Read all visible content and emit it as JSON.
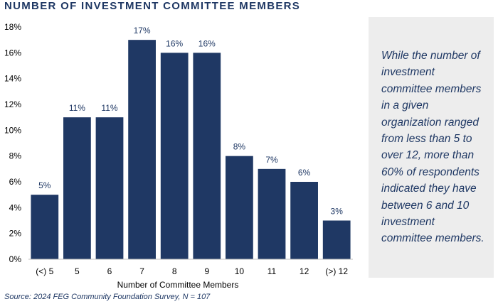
{
  "title": "NUMBER OF INVESTMENT COMMITTEE MEMBERS",
  "commentary": "While the number of investment committee members in a given organization ranged from less than 5 to over 12, more than 60% of respondents indicated they have between 6 and 10 investment committee members.",
  "source": "Source: 2024 FEG Community Foundation Survey, N = 107",
  "colors": {
    "bar": "#1f3864",
    "title": "#1f3864",
    "panel": "#ededed"
  },
  "chart_data": {
    "type": "bar",
    "title": "",
    "xlabel": "Number of Committee Members",
    "ylabel": "",
    "categories": [
      "(<) 5",
      "5",
      "6",
      "7",
      "8",
      "9",
      "10",
      "11",
      "12",
      "(>) 12"
    ],
    "values": [
      5,
      11,
      11,
      17,
      16,
      16,
      8,
      7,
      6,
      3
    ],
    "data_labels": [
      "5%",
      "11%",
      "11%",
      "17%",
      "16%",
      "16%",
      "8%",
      "7%",
      "6%",
      "3%"
    ],
    "ylim": [
      0,
      18
    ],
    "yticks": [
      0,
      2,
      4,
      6,
      8,
      10,
      12,
      14,
      16,
      18
    ],
    "ytick_labels": [
      "0%",
      "2%",
      "4%",
      "6%",
      "8%",
      "10%",
      "12%",
      "14%",
      "16%",
      "18%"
    ],
    "grid": false,
    "legend": "none"
  }
}
